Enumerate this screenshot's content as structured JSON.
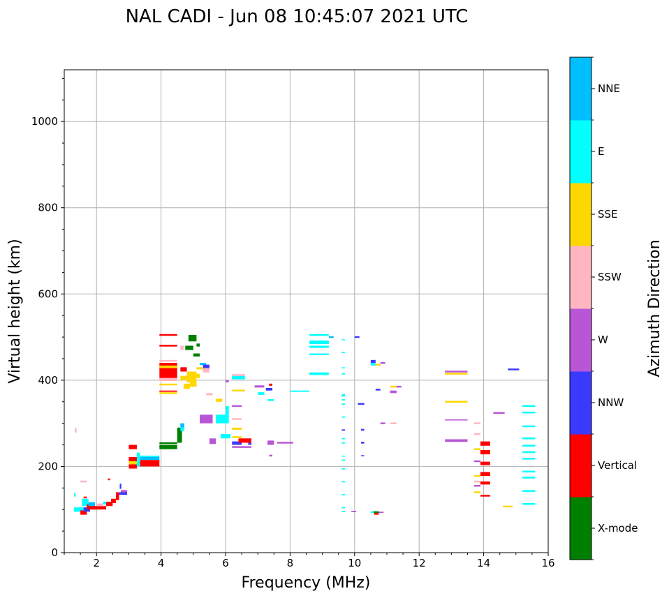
{
  "chart_data": {
    "type": "scatter",
    "title": "NAL CADI - Jun 08 10:45:07 2021 UTC",
    "xlabel": "Frequency (MHz)",
    "ylabel": "Virtual height (km)",
    "xlim": [
      1,
      16
    ],
    "ylim": [
      0,
      1120
    ],
    "xticks": [
      "2",
      "4",
      "6",
      "8",
      "10",
      "12",
      "14",
      "16"
    ],
    "yticks": [
      "0",
      "200",
      "400",
      "600",
      "800",
      "1000"
    ],
    "grid": true,
    "colorbar": {
      "label": "Azimuth Direction",
      "categories": [
        "X-mode",
        "Vertical",
        "NNW",
        "W",
        "SSW",
        "SSE",
        "E",
        "NNE"
      ],
      "colors": [
        "#008000",
        "#ff0000",
        "#3a3aff",
        "#b856d6",
        "#ffb6c1",
        "#ffd700",
        "#00ffff",
        "#00bfff"
      ]
    },
    "segments_note": "each echo: [freq_start_MHz, freq_end_MHz, height_low_km, height_high_km, category_index]",
    "echoes": [
      [
        1.3,
        1.6,
        95,
        105,
        6
      ],
      [
        1.5,
        1.7,
        88,
        98,
        1
      ],
      [
        1.55,
        1.75,
        108,
        125,
        6
      ],
      [
        1.6,
        1.8,
        95,
        105,
        2
      ],
      [
        1.6,
        1.7,
        126,
        130,
        1
      ],
      [
        1.7,
        1.95,
        100,
        112,
        1
      ],
      [
        1.75,
        1.95,
        108,
        117,
        7
      ],
      [
        1.9,
        2.3,
        100,
        108,
        1
      ],
      [
        2.0,
        2.2,
        108,
        114,
        4
      ],
      [
        2.3,
        2.5,
        108,
        118,
        1
      ],
      [
        2.45,
        2.6,
        115,
        125,
        1
      ],
      [
        2.6,
        2.7,
        122,
        140,
        1
      ],
      [
        2.7,
        2.95,
        134,
        140,
        2
      ],
      [
        2.75,
        2.95,
        140,
        145,
        3
      ],
      [
        1.5,
        1.7,
        163,
        167,
        4
      ],
      [
        2.35,
        2.42,
        168,
        172,
        1
      ],
      [
        1.33,
        1.38,
        278,
        290,
        4
      ],
      [
        2.72,
        2.77,
        148,
        160,
        2
      ],
      [
        1.3,
        1.35,
        130,
        138,
        6
      ],
      [
        2.2,
        2.3,
        112,
        118,
        6
      ],
      [
        3.0,
        3.25,
        240,
        250,
        1
      ],
      [
        3.0,
        3.25,
        195,
        205,
        1
      ],
      [
        3.0,
        3.25,
        205,
        212,
        5
      ],
      [
        3.0,
        3.25,
        212,
        222,
        1
      ],
      [
        3.25,
        3.35,
        200,
        232,
        6
      ],
      [
        3.35,
        3.95,
        200,
        215,
        1
      ],
      [
        3.35,
        3.95,
        215,
        222,
        7
      ],
      [
        3.35,
        3.95,
        222,
        225,
        6
      ],
      [
        3.95,
        4.5,
        240,
        250,
        0
      ],
      [
        3.95,
        4.5,
        252,
        256,
        0
      ],
      [
        4.5,
        4.65,
        255,
        290,
        0
      ],
      [
        4.6,
        4.72,
        290,
        300,
        7
      ],
      [
        4.6,
        4.72,
        282,
        290,
        6
      ],
      [
        3.95,
        4.5,
        405,
        440,
        1
      ],
      [
        3.95,
        4.5,
        398,
        405,
        4
      ],
      [
        3.95,
        4.5,
        443,
        447,
        4
      ],
      [
        3.95,
        4.5,
        428,
        434,
        5
      ],
      [
        3.95,
        4.5,
        368,
        372,
        5
      ],
      [
        3.95,
        4.5,
        373,
        376,
        1
      ],
      [
        3.95,
        4.5,
        388,
        392,
        5
      ],
      [
        3.95,
        4.5,
        478,
        482,
        1
      ],
      [
        3.95,
        4.5,
        503,
        507,
        1
      ],
      [
        4.6,
        4.8,
        420,
        430,
        1
      ],
      [
        4.6,
        4.8,
        400,
        410,
        5
      ],
      [
        4.7,
        4.9,
        380,
        392,
        5
      ],
      [
        4.8,
        5.1,
        395,
        420,
        5
      ],
      [
        5.0,
        5.2,
        405,
        415,
        5
      ],
      [
        5.1,
        5.3,
        425,
        430,
        5
      ],
      [
        4.9,
        5.1,
        385,
        395,
        5
      ],
      [
        4.6,
        4.7,
        470,
        480,
        4
      ],
      [
        4.75,
        5.0,
        470,
        480,
        0
      ],
      [
        4.85,
        5.1,
        490,
        505,
        0
      ],
      [
        5.0,
        5.2,
        455,
        462,
        0
      ],
      [
        5.1,
        5.2,
        478,
        485,
        0
      ],
      [
        5.2,
        5.4,
        435,
        440,
        7
      ],
      [
        5.3,
        5.5,
        428,
        436,
        2
      ],
      [
        5.3,
        5.5,
        418,
        428,
        4
      ],
      [
        5.2,
        5.6,
        300,
        320,
        3
      ],
      [
        5.7,
        6.1,
        300,
        320,
        6
      ],
      [
        6.0,
        6.1,
        320,
        340,
        6
      ],
      [
        5.5,
        5.7,
        252,
        265,
        3
      ],
      [
        5.85,
        6.15,
        265,
        275,
        6
      ],
      [
        6.2,
        6.5,
        250,
        258,
        2
      ],
      [
        6.4,
        6.8,
        255,
        265,
        1
      ],
      [
        6.2,
        6.8,
        243,
        247,
        3
      ],
      [
        6.2,
        6.5,
        266,
        270,
        5
      ],
      [
        6.2,
        6.5,
        285,
        290,
        5
      ],
      [
        6.2,
        6.5,
        308,
        312,
        4
      ],
      [
        6.2,
        6.5,
        338,
        342,
        3
      ],
      [
        6.2,
        6.6,
        374,
        378,
        5
      ],
      [
        6.2,
        6.6,
        402,
        410,
        6
      ],
      [
        6.2,
        6.6,
        410,
        414,
        4
      ],
      [
        5.4,
        5.6,
        365,
        370,
        4
      ],
      [
        5.7,
        5.9,
        350,
        357,
        5
      ],
      [
        6.0,
        6.1,
        395,
        400,
        3
      ],
      [
        6.7,
        6.8,
        250,
        255,
        2
      ],
      [
        6.9,
        7.2,
        383,
        388,
        3
      ],
      [
        7.0,
        7.2,
        366,
        372,
        6
      ],
      [
        7.25,
        7.45,
        376,
        382,
        2
      ],
      [
        7.35,
        7.45,
        387,
        392,
        1
      ],
      [
        7.3,
        7.5,
        352,
        356,
        6
      ],
      [
        7.6,
        8.1,
        253,
        257,
        3
      ],
      [
        7.3,
        7.5,
        250,
        260,
        3
      ],
      [
        7.35,
        7.45,
        223,
        227,
        3
      ],
      [
        8.0,
        8.6,
        373,
        376,
        6
      ],
      [
        8.6,
        9.2,
        412,
        418,
        6
      ],
      [
        8.6,
        9.2,
        458,
        462,
        6
      ],
      [
        8.6,
        9.2,
        475,
        480,
        6
      ],
      [
        8.6,
        9.2,
        484,
        492,
        6
      ],
      [
        8.6,
        9.2,
        503,
        507,
        6
      ],
      [
        9.2,
        9.35,
        498,
        502,
        7
      ],
      [
        9.6,
        9.7,
        94,
        97,
        6
      ],
      [
        9.6,
        9.7,
        103,
        106,
        6
      ],
      [
        9.6,
        9.7,
        133,
        136,
        6
      ],
      [
        9.6,
        9.7,
        163,
        166,
        6
      ],
      [
        9.6,
        9.7,
        193,
        196,
        6
      ],
      [
        9.6,
        9.7,
        213,
        216,
        6
      ],
      [
        9.6,
        9.7,
        223,
        225,
        6
      ],
      [
        9.6,
        9.7,
        253,
        256,
        6
      ],
      [
        9.6,
        9.7,
        263,
        266,
        6
      ],
      [
        9.6,
        9.7,
        313,
        316,
        6
      ],
      [
        9.6,
        9.7,
        343,
        346,
        6
      ],
      [
        9.6,
        9.7,
        353,
        356,
        6
      ],
      [
        9.6,
        9.7,
        362,
        368,
        6
      ],
      [
        9.6,
        9.7,
        413,
        416,
        6
      ],
      [
        9.6,
        9.7,
        428,
        430,
        6
      ],
      [
        9.6,
        9.7,
        463,
        466,
        6
      ],
      [
        9.6,
        9.7,
        493,
        495,
        6
      ],
      [
        9.6,
        9.7,
        283,
        286,
        2
      ],
      [
        10.0,
        10.15,
        498,
        502,
        2
      ],
      [
        10.1,
        10.3,
        343,
        347,
        2
      ],
      [
        10.5,
        10.65,
        440,
        447,
        2
      ],
      [
        10.5,
        10.65,
        434,
        440,
        6
      ],
      [
        10.65,
        10.8,
        434,
        438,
        5
      ],
      [
        10.8,
        10.95,
        438,
        442,
        3
      ],
      [
        10.65,
        10.8,
        376,
        380,
        2
      ],
      [
        11.1,
        11.3,
        383,
        387,
        5
      ],
      [
        11.3,
        11.45,
        383,
        387,
        3
      ],
      [
        11.1,
        11.3,
        370,
        376,
        3
      ],
      [
        10.8,
        10.95,
        298,
        302,
        3
      ],
      [
        11.1,
        11.3,
        298,
        302,
        4
      ],
      [
        10.2,
        10.3,
        283,
        287,
        2
      ],
      [
        10.2,
        10.3,
        253,
        257,
        2
      ],
      [
        10.2,
        10.3,
        224,
        226,
        2
      ],
      [
        10.5,
        10.65,
        92,
        96,
        6
      ],
      [
        10.6,
        10.75,
        88,
        92,
        1
      ],
      [
        10.6,
        10.75,
        92,
        96,
        0
      ],
      [
        10.75,
        10.9,
        92,
        95,
        3
      ],
      [
        9.9,
        10.05,
        94,
        97,
        3
      ],
      [
        12.8,
        13.5,
        418,
        422,
        3
      ],
      [
        12.8,
        13.5,
        413,
        417,
        5
      ],
      [
        12.8,
        13.5,
        348,
        352,
        5
      ],
      [
        12.8,
        13.5,
        307,
        309,
        3
      ],
      [
        12.8,
        13.5,
        257,
        263,
        3
      ],
      [
        13.7,
        13.9,
        298,
        302,
        4
      ],
      [
        13.7,
        13.9,
        273,
        277,
        4
      ],
      [
        13.9,
        14.2,
        248,
        258,
        1
      ],
      [
        13.9,
        14.2,
        228,
        238,
        1
      ],
      [
        13.9,
        14.2,
        203,
        211,
        1
      ],
      [
        13.9,
        14.2,
        178,
        187,
        1
      ],
      [
        13.9,
        14.2,
        158,
        165,
        1
      ],
      [
        13.9,
        14.2,
        130,
        134,
        1
      ],
      [
        13.7,
        13.9,
        238,
        242,
        5
      ],
      [
        13.7,
        13.9,
        210,
        214,
        3
      ],
      [
        13.7,
        13.9,
        176,
        180,
        5
      ],
      [
        13.7,
        13.9,
        163,
        167,
        4
      ],
      [
        13.7,
        13.9,
        153,
        157,
        3
      ],
      [
        13.7,
        13.9,
        138,
        142,
        5
      ],
      [
        14.3,
        14.65,
        322,
        326,
        3
      ],
      [
        14.75,
        15.1,
        423,
        427,
        2
      ],
      [
        14.6,
        14.9,
        105,
        109,
        5
      ],
      [
        15.2,
        15.6,
        338,
        342,
        6
      ],
      [
        15.2,
        15.6,
        323,
        327,
        6
      ],
      [
        15.2,
        15.6,
        291,
        295,
        6
      ],
      [
        15.2,
        15.6,
        263,
        267,
        6
      ],
      [
        15.2,
        15.6,
        246,
        250,
        6
      ],
      [
        15.2,
        15.6,
        231,
        235,
        6
      ],
      [
        15.2,
        15.6,
        216,
        220,
        6
      ],
      [
        15.2,
        15.6,
        186,
        190,
        6
      ],
      [
        15.2,
        15.6,
        172,
        176,
        6
      ],
      [
        15.2,
        15.6,
        141,
        145,
        6
      ],
      [
        15.2,
        15.6,
        111,
        115,
        6
      ]
    ]
  }
}
